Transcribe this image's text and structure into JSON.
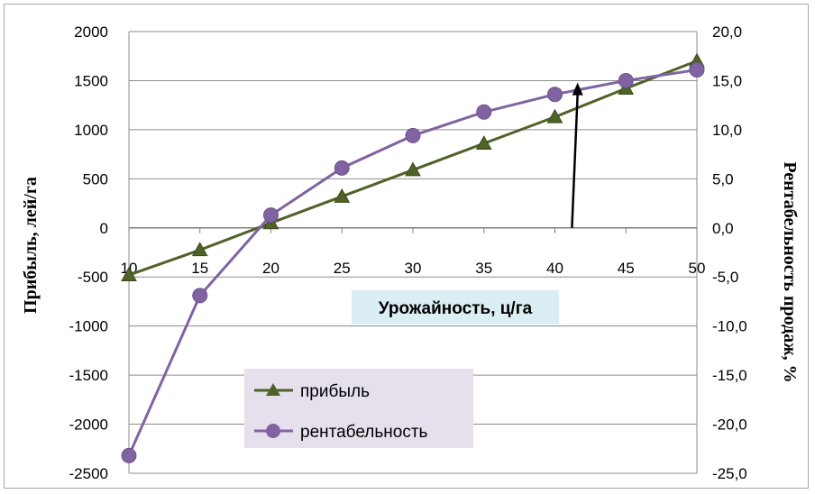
{
  "chart_data": {
    "type": "line",
    "xlabel": "Урожайность, ц/га",
    "ylabel": "Прибыль, лей/га",
    "y2label": "Рентабельность продаж, %",
    "x": [
      10,
      15,
      20,
      25,
      30,
      35,
      40,
      45,
      50
    ],
    "x_tick_labels": [
      "10",
      "15",
      "20",
      "25",
      "30",
      "35",
      "40",
      "45",
      "50"
    ],
    "ylim": [
      -2500,
      2000
    ],
    "y_tick_labels": [
      "2000",
      "1500",
      "1000",
      "500",
      "0",
      "-500",
      "-1000",
      "-1500",
      "-2000",
      "-2500"
    ],
    "y2lim": [
      -25,
      20
    ],
    "y2_tick_labels": [
      "20,0",
      "15,0",
      "10,0",
      "5,0",
      "0,0",
      "-5,0",
      "-10,0",
      "-15,0",
      "-20,0",
      "-25,0"
    ],
    "grid": "horizontal",
    "legend_position": "bottom-center",
    "series": [
      {
        "name": "прибыль",
        "axis": "left",
        "marker": "triangle",
        "color": "#4f6228",
        "values": [
          -480,
          -225,
          50,
          320,
          590,
          860,
          1130,
          1420,
          1700
        ]
      },
      {
        "name": "рентабельность",
        "axis": "right",
        "marker": "circle",
        "color": "#8064a2",
        "values": [
          -23.2,
          -6.9,
          1.3,
          6.1,
          9.4,
          11.8,
          13.6,
          15.0,
          16.1
        ]
      }
    ],
    "annotations": [
      {
        "type": "arrow",
        "color": "#000000",
        "from": {
          "x": 41.2,
          "y": 0
        },
        "to": {
          "x": 41.6,
          "y": 1480
        }
      }
    ]
  }
}
